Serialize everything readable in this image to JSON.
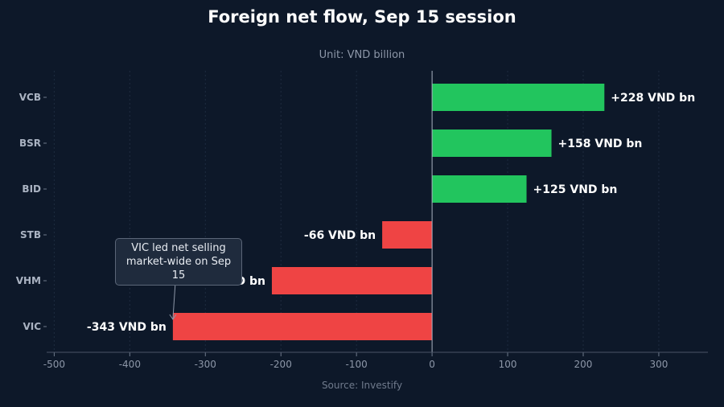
{
  "chart_data": {
    "type": "bar",
    "orientation": "horizontal",
    "title": "Foreign net flow, Sep 15 session",
    "subtitle": "Unit: VND billion",
    "source": "Source: Investify",
    "categories": [
      "VCB",
      "BSR",
      "BID",
      "STB",
      "VHM",
      "VIC"
    ],
    "values": [
      228,
      158,
      125,
      -66,
      -212,
      -343
    ],
    "data_labels": [
      "+228 VND bn",
      "+158 VND bn",
      "+125 VND bn",
      "-66 VND bn",
      "-212 VND bn",
      "-343 VND bn"
    ],
    "xlim": [
      -510,
      365
    ],
    "xticks": [
      -500,
      -400,
      -300,
      -200,
      -100,
      0,
      100,
      200,
      300
    ],
    "grid": true,
    "colors": {
      "positive": "#22c55e",
      "negative": "#ef4444",
      "background": "#0d1829"
    },
    "annotation": {
      "text": "VIC led net selling market-wide on Sep 15",
      "target_category": "VIC"
    }
  }
}
